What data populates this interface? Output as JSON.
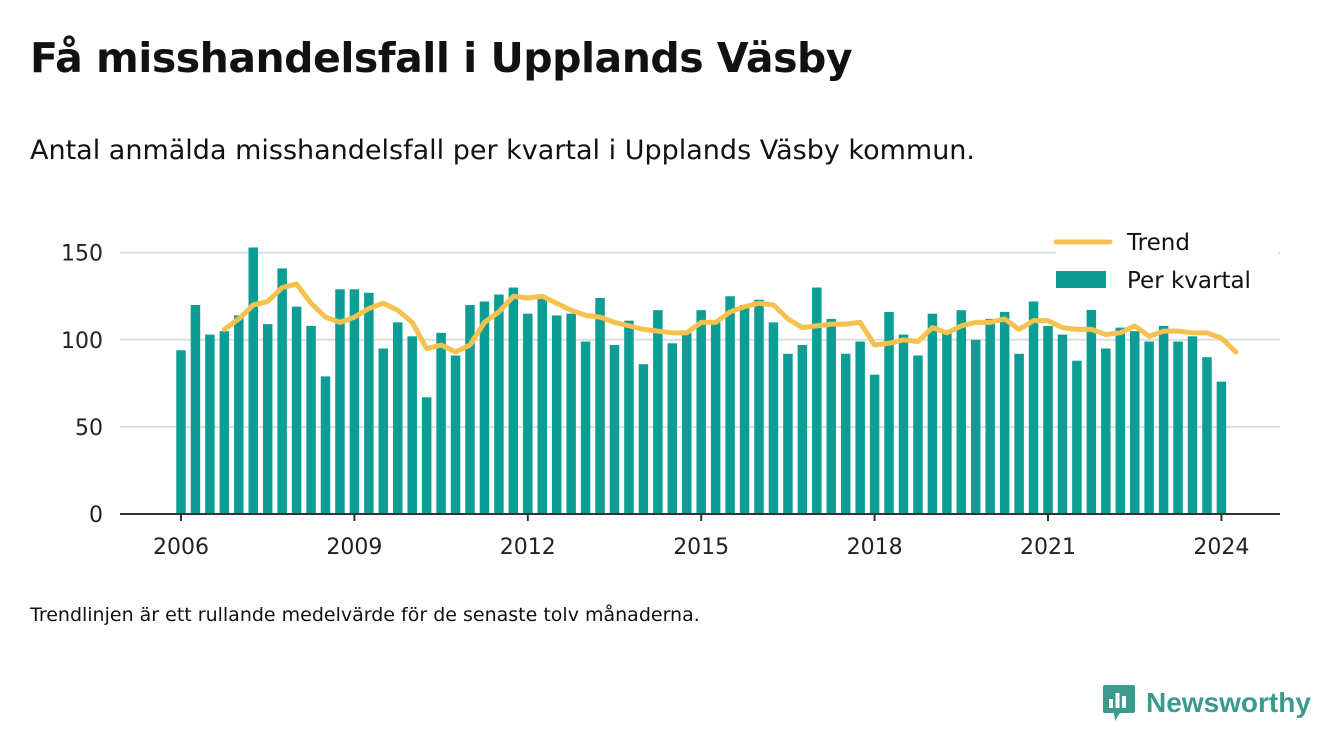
{
  "header": {
    "title": "Få misshandelsfall i Upplands Väsby",
    "subtitle": "Antal anmälda misshandelsfall per kvartal i Upplands Väsby kommun."
  },
  "footnote": "Trendlinjen är ett rullande medelvärde för de senaste tolv månaderna.",
  "brand": {
    "name": "Newsworthy",
    "color": "#3a9a8c",
    "icon": "newsworthy-chart-bubble-icon"
  },
  "colors": {
    "bar": "#0c9e94",
    "trend": "#f7c14f",
    "grid": "#dddddd",
    "axis": "#333333"
  },
  "chart_data": {
    "type": "bar",
    "title": "",
    "xlabel": "",
    "ylabel": "",
    "x_start": "2006-01",
    "x_step": "quarter",
    "x_ticks": [
      "2006",
      "2009",
      "2012",
      "2015",
      "2018",
      "2021",
      "2024"
    ],
    "y_ticks": [
      0,
      50,
      100,
      150
    ],
    "ylim": [
      0,
      150
    ],
    "grid": true,
    "legend": {
      "position": "top-right"
    },
    "series": [
      {
        "name": "Per kvartal",
        "type": "bar",
        "values": [
          94,
          120,
          103,
          105,
          114,
          153,
          109,
          141,
          119,
          108,
          79,
          129,
          129,
          127,
          95,
          110,
          102,
          67,
          104,
          91,
          120,
          122,
          126,
          130,
          115,
          124,
          114,
          115,
          99,
          124,
          97,
          111,
          86,
          117,
          98,
          105,
          117,
          111,
          125,
          120,
          123,
          110,
          92,
          97,
          130,
          112,
          92,
          99,
          80,
          116,
          103,
          91,
          115,
          104,
          117,
          100,
          112,
          116,
          92,
          122,
          108,
          103,
          88,
          119,
          95,
          107,
          105,
          99,
          108,
          99,
          102,
          90,
          76
        ]
      },
      {
        "name": "Trend",
        "type": "line",
        "start_index": 3,
        "values": [
          106,
          112,
          120,
          122,
          130,
          132,
          121,
          113,
          110,
          113,
          118,
          121,
          117,
          110,
          95,
          97,
          93,
          97,
          110,
          116,
          125,
          124,
          125,
          121,
          117,
          114,
          113,
          110,
          108,
          106,
          105,
          104,
          104,
          110,
          110,
          116,
          119,
          121,
          120,
          112,
          107,
          108,
          109,
          109,
          110,
          97,
          98,
          100,
          99,
          107,
          104,
          108,
          110,
          110,
          112,
          106,
          111,
          111,
          107,
          106,
          106,
          103,
          104,
          108,
          102,
          105,
          105,
          104,
          104,
          101,
          93
        ]
      }
    ]
  }
}
